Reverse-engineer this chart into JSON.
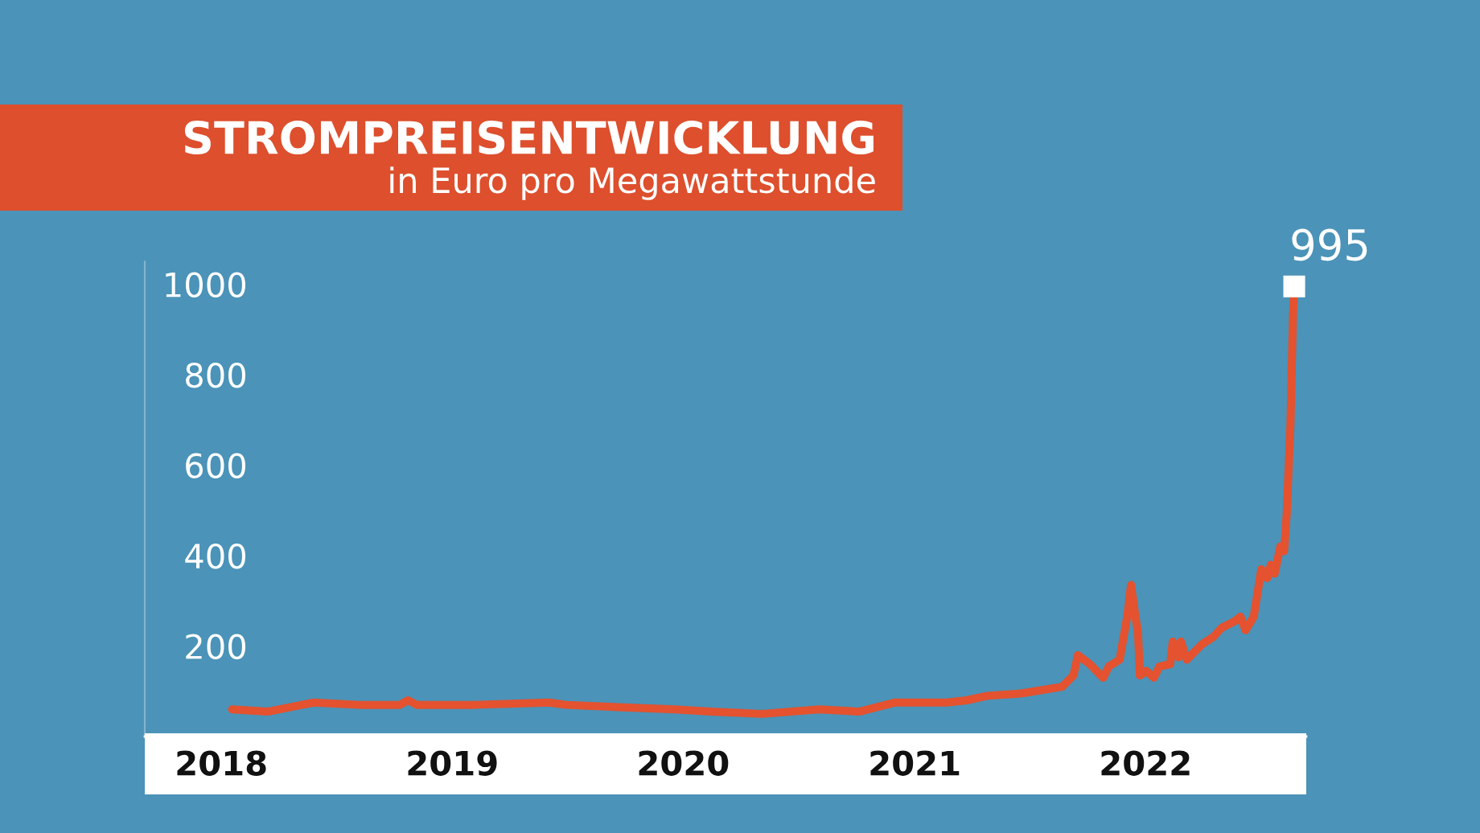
{
  "chart_data": {
    "type": "line",
    "title": "STROMPREISENTWICKLUNG",
    "subtitle": "in Euro pro Megawattstunde",
    "series": [
      {
        "color": "#e4522f",
        "line_style": "solid",
        "marker": "none",
        "x": [
          "2018-01-18",
          "2018-03-15",
          "2018-05-26",
          "2018-08-07",
          "2018-10-10",
          "2018-10-23",
          "2018-11-06",
          "2019-02-05",
          "2019-06-03",
          "2019-06-30",
          "2019-09-20",
          "2019-12-19",
          "2020-02-13",
          "2020-05-05",
          "2020-08-04",
          "2020-10-05",
          "2020-11-30",
          "2021-02-20",
          "2021-03-24",
          "2021-04-26",
          "2021-06-17",
          "2021-08-22",
          "2021-09-09",
          "2021-09-16",
          "2021-10-05",
          "2021-10-26",
          "2021-11-04",
          "2021-11-21",
          "2021-12-03",
          "2021-12-09",
          "2021-12-16",
          "2021-12-20",
          "2021-12-23",
          "2022-01-02",
          "2022-01-14",
          "2022-01-23",
          "2022-02-09",
          "2022-02-13",
          "2022-02-22",
          "2022-02-26",
          "2022-03-07",
          "2022-04-01",
          "2022-04-18",
          "2022-05-01",
          "2022-05-22",
          "2022-05-31",
          "2022-06-08",
          "2022-06-21",
          "2022-07-03",
          "2022-07-12",
          "2022-07-18",
          "2022-07-24",
          "2022-08-02",
          "2022-08-08",
          "2022-08-12",
          "2022-08-18",
          "2022-08-22",
          "2022-08-24"
        ],
        "values": [
          60,
          55,
          75,
          70,
          70,
          80,
          70,
          70,
          75,
          70,
          65,
          60,
          55,
          50,
          60,
          55,
          75,
          75,
          80,
          90,
          95,
          110,
          135,
          180,
          160,
          130,
          155,
          170,
          265,
          335,
          265,
          230,
          135,
          145,
          130,
          155,
          160,
          210,
          175,
          210,
          170,
          205,
          220,
          240,
          255,
          265,
          235,
          265,
          370,
          350,
          380,
          360,
          420,
          410,
          490,
          690,
          930,
          995
        ]
      },
      {
        "type": "scatter",
        "color": "#ffffff",
        "marker": "square",
        "x": [
          "2022-08-24"
        ],
        "values": [
          995
        ]
      }
    ],
    "annotations": [
      {
        "text": "995",
        "x": "2022-08-24",
        "y": 995
      }
    ],
    "xlim": [
      "2017-09-02",
      "2022-09-12"
    ],
    "xticks": [
      {
        "value": "2018-01-01",
        "label": "2018"
      },
      {
        "value": "2019-01-01",
        "label": "2019"
      },
      {
        "value": "2020-01-01",
        "label": "2020"
      },
      {
        "value": "2021-01-01",
        "label": "2021"
      },
      {
        "value": "2022-01-01",
        "label": "2022"
      }
    ],
    "ylim": [
      0,
      1050
    ],
    "yticks": [
      200,
      400,
      600,
      800,
      1000
    ],
    "grid": false
  }
}
